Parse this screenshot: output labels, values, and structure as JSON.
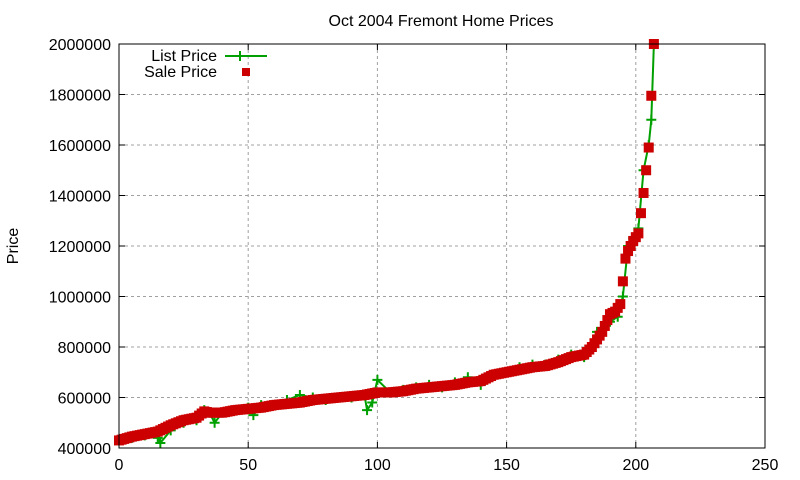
{
  "chart_data": {
    "type": "line",
    "title": "Oct 2004 Fremont Home Prices",
    "xlabel": "",
    "ylabel": "Price",
    "xlim": [
      0,
      250
    ],
    "ylim": [
      400000,
      2000000
    ],
    "xticks": [
      0,
      50,
      100,
      150,
      200,
      250
    ],
    "yticks": [
      400000,
      600000,
      800000,
      1000000,
      1200000,
      1400000,
      1600000,
      1800000,
      2000000
    ],
    "grid": true,
    "legend_position": "top-left",
    "series": [
      {
        "name": "List Price",
        "style": "linespoints",
        "color": "#00a000",
        "marker": "plus",
        "x": [
          0,
          5,
          10,
          15,
          16,
          20,
          25,
          30,
          33,
          35,
          37,
          40,
          45,
          50,
          52,
          55,
          60,
          65,
          70,
          75,
          80,
          85,
          90,
          95,
          96,
          98,
          100,
          105,
          110,
          115,
          120,
          125,
          130,
          135,
          140,
          145,
          150,
          155,
          160,
          165,
          170,
          175,
          180,
          185,
          190,
          193,
          195,
          197,
          199,
          201,
          203,
          205,
          206,
          207
        ],
        "values": [
          430000,
          440000,
          450000,
          440000,
          420000,
          470000,
          500000,
          510000,
          550000,
          540000,
          500000,
          540000,
          550000,
          560000,
          530000,
          570000,
          570000,
          590000,
          610000,
          600000,
          590000,
          600000,
          600000,
          610000,
          550000,
          580000,
          670000,
          620000,
          630000,
          640000,
          650000,
          640000,
          660000,
          680000,
          650000,
          690000,
          700000,
          720000,
          730000,
          730000,
          750000,
          770000,
          760000,
          860000,
          900000,
          920000,
          1000000,
          1200000,
          1230000,
          1270000,
          1500000,
          1600000,
          1700000,
          2000000
        ]
      },
      {
        "name": "Sale Price",
        "style": "points",
        "color": "#cc0000",
        "marker": "square",
        "x": [
          0,
          5,
          10,
          15,
          20,
          25,
          30,
          33,
          35,
          40,
          45,
          50,
          55,
          60,
          65,
          70,
          75,
          80,
          85,
          90,
          95,
          100,
          105,
          110,
          115,
          120,
          125,
          130,
          135,
          140,
          145,
          150,
          155,
          160,
          165,
          170,
          175,
          180,
          183,
          185,
          187,
          190,
          192,
          194,
          196,
          197,
          199,
          201,
          203,
          205,
          207
        ],
        "values": [
          430000,
          445000,
          455000,
          465000,
          490000,
          510000,
          520000,
          545000,
          540000,
          540000,
          550000,
          555000,
          560000,
          570000,
          575000,
          580000,
          590000,
          595000,
          600000,
          605000,
          610000,
          620000,
          620000,
          625000,
          635000,
          640000,
          645000,
          650000,
          660000,
          665000,
          690000,
          700000,
          710000,
          720000,
          725000,
          740000,
          760000,
          770000,
          800000,
          830000,
          860000,
          930000,
          940000,
          970000,
          1150000,
          1180000,
          1220000,
          1250000,
          1410000,
          1590000,
          2000000
        ]
      }
    ]
  },
  "legend": {
    "items": [
      {
        "label": "List Price"
      },
      {
        "label": "Sale Price"
      }
    ]
  }
}
